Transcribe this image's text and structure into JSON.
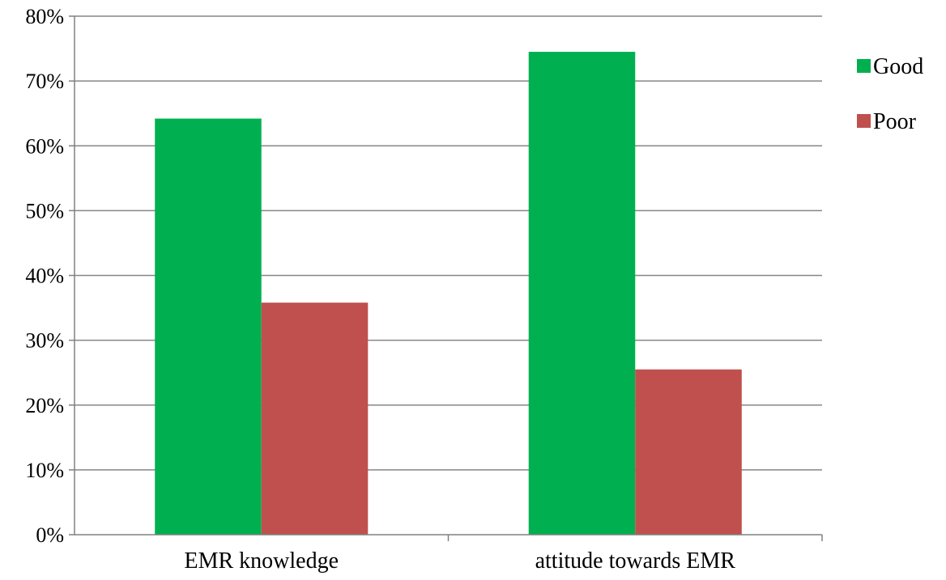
{
  "chart_data": {
    "type": "bar",
    "categories": [
      "EMR knowledge",
      "attitude towards EMR"
    ],
    "series": [
      {
        "name": "Good",
        "values": [
          64.2,
          74.5
        ],
        "color": "#00b050"
      },
      {
        "name": "Poor",
        "values": [
          35.8,
          25.5
        ],
        "color": "#c0504d"
      }
    ],
    "ylim": [
      0,
      80
    ],
    "yticks": [
      0,
      10,
      20,
      30,
      40,
      50,
      60,
      70,
      80
    ],
    "ytick_labels": [
      "0%",
      "10%",
      "20%",
      "30%",
      "40%",
      "50%",
      "60%",
      "70%",
      "80%"
    ],
    "grid": true,
    "legend_position": "top-right",
    "title": "",
    "xlabel": "",
    "ylabel": ""
  }
}
